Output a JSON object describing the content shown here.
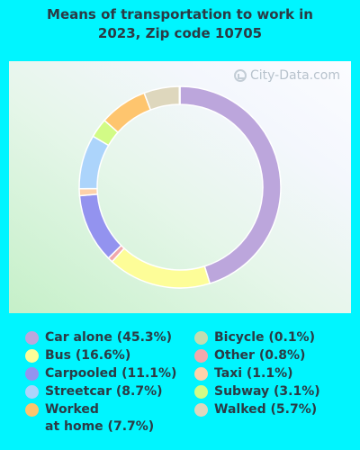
{
  "title_lines": [
    "Means of transportation to work in",
    "2023, Zip code 10705"
  ],
  "watermark": "City-Data.com",
  "chart_data": {
    "type": "pie",
    "title": "Means of transportation to work in 2023, Zip code 10705",
    "donut": true,
    "order_clockwise_from_top": [
      "Car alone",
      "Bus",
      "Other",
      "Carpooled",
      "Taxi",
      "Streetcar",
      "Subway",
      "Worked at home",
      "Walked",
      "Bicycle"
    ],
    "slices": [
      {
        "name": "Car alone",
        "value": 45.3,
        "color": "#bca6dc",
        "legend": "Car alone (45.3%)"
      },
      {
        "name": "Bus",
        "value": 16.6,
        "color": "#fdfd98",
        "legend": "Bus (16.6%)"
      },
      {
        "name": "Carpooled",
        "value": 11.1,
        "color": "#9393ef",
        "legend": "Carpooled (11.1%)"
      },
      {
        "name": "Streetcar",
        "value": 8.7,
        "color": "#acd4fb",
        "legend": "Streetcar (8.7%)"
      },
      {
        "name": "Worked at home",
        "value": 7.7,
        "color": "#fec56e",
        "legend": "Worked\nat home (7.7%)"
      },
      {
        "name": "Bicycle",
        "value": 0.1,
        "color": "#c2ddb0",
        "legend": "Bicycle (0.1%)"
      },
      {
        "name": "Other",
        "value": 0.8,
        "color": "#f1a8ac",
        "legend": "Other (0.8%)"
      },
      {
        "name": "Taxi",
        "value": 1.1,
        "color": "#fed2aa",
        "legend": "Taxi (1.1%)"
      },
      {
        "name": "Subway",
        "value": 3.1,
        "color": "#d2fb86",
        "legend": "Subway (3.1%)"
      },
      {
        "name": "Walked",
        "value": 5.7,
        "color": "#ded7bd",
        "legend": "Walked (5.7%)"
      }
    ],
    "legend_columns": [
      [
        "Car alone",
        "Bus",
        "Carpooled",
        "Streetcar",
        "Worked at home"
      ],
      [
        "Bicycle",
        "Other",
        "Taxi",
        "Subway",
        "Walked"
      ]
    ]
  }
}
